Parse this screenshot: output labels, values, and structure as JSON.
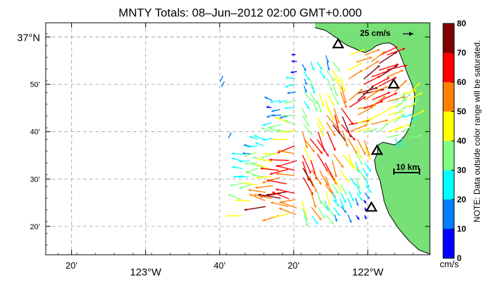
{
  "title": "MNTY Totals: 08–Jun–2012 02:00 GMT+0.000",
  "scale_arrow_label": "25 cm/s",
  "scale_bar_label": "10 km",
  "lat_labels": [
    {
      "label": "37°N",
      "lat": 37.0
    },
    {
      "label": "50’",
      "lat": 36.8333
    },
    {
      "label": "40’",
      "lat": 36.6667
    },
    {
      "label": "30’",
      "lat": 36.5
    },
    {
      "label": "20’",
      "lat": 36.3333
    }
  ],
  "lon_labels": [
    {
      "label": "20’",
      "lon": -123.3333
    },
    {
      "label": "123°W",
      "lon": -123.0
    },
    {
      "label": "40’",
      "lon": -122.6667
    },
    {
      "label": "20’",
      "lon": -122.3333
    },
    {
      "label": "122°W",
      "lon": -122.0
    }
  ],
  "lon_range": [
    -123.45,
    -121.72
  ],
  "lat_range": [
    36.2333,
    37.05
  ],
  "colorbar": {
    "ticks": [
      "0",
      "10",
      "20",
      "30",
      "40",
      "50",
      "60",
      "70",
      "80"
    ],
    "unit": "cm/s",
    "colors": [
      "#0000ff",
      "#0080ff",
      "#00ffff",
      "#80ff80",
      "#ffff00",
      "#ff8000",
      "#ff0000",
      "#800000"
    ],
    "note": "NOTE: Data outside color range will be saturated."
  },
  "stations": [
    {
      "lon": -122.1333,
      "lat": 36.975
    },
    {
      "lon": -121.8833,
      "lat": 36.8333
    },
    {
      "lon": -121.9583,
      "lat": 36.6
    },
    {
      "lon": -121.9833,
      "lat": 36.4
    }
  ],
  "land_color": "#77e077",
  "coast_color": "#000000"
}
